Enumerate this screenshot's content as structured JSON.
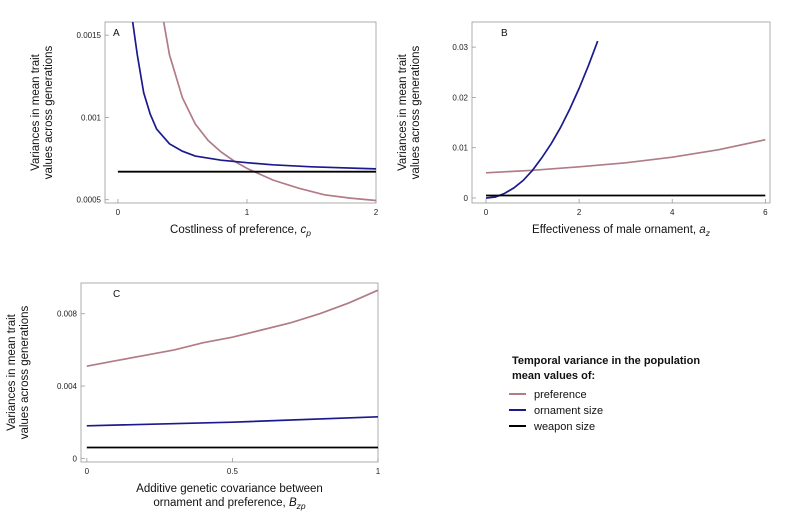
{
  "chart_data": [
    {
      "panel": "A",
      "type": "line",
      "xlabel": "Costliness of preference, c",
      "xlabel_sub": "p",
      "ylabel": [
        "Variances in mean trait",
        "values across generations"
      ],
      "xlim": [
        -0.1,
        2.0
      ],
      "ylim": [
        0.00048,
        0.00158
      ],
      "xticks": [
        0,
        1,
        2
      ],
      "xtick_labels": [
        "0",
        "1",
        "2"
      ],
      "yticks": [
        0.0005,
        0.001,
        0.0015
      ],
      "ytick_labels": [
        "0.0005",
        "0.001",
        "0.0015"
      ],
      "series": [
        {
          "name": "preference",
          "color": "#b07c86",
          "x": [
            0.355,
            0.4,
            0.5,
            0.6,
            0.7,
            0.8,
            0.9,
            1.0,
            1.2,
            1.4,
            1.6,
            1.8,
            2.0
          ],
          "y": [
            0.00158,
            0.00138,
            0.00112,
            0.00096,
            0.00086,
            0.00079,
            0.000735,
            0.00069,
            0.00062,
            0.00057,
            0.00053,
            0.00051,
            0.000495
          ]
        },
        {
          "name": "ornament size",
          "color": "#1a1a8e",
          "x": [
            0.115,
            0.15,
            0.2,
            0.25,
            0.3,
            0.4,
            0.5,
            0.6,
            0.8,
            1.0,
            1.2,
            1.5,
            2.0
          ],
          "y": [
            0.00158,
            0.00138,
            0.00115,
            0.00102,
            0.00093,
            0.00084,
            0.000795,
            0.000765,
            0.00074,
            0.000725,
            0.000712,
            0.0007,
            0.000687
          ]
        },
        {
          "name": "weapon size",
          "color": "#000000",
          "x": [
            0.0,
            2.0
          ],
          "y": [
            0.00067,
            0.00067
          ]
        }
      ]
    },
    {
      "panel": "B",
      "type": "line",
      "xlabel": "Effectiveness of male ornament, a",
      "xlabel_sub": "z",
      "ylabel": [
        "Variances in mean trait",
        "values across generations"
      ],
      "xlim": [
        -0.3,
        6.1
      ],
      "ylim": [
        -0.001,
        0.035
      ],
      "xticks": [
        0,
        2,
        4,
        6
      ],
      "xtick_labels": [
        "0",
        "2",
        "4",
        "6"
      ],
      "yticks": [
        0,
        0.01,
        0.02,
        0.03
      ],
      "ytick_labels": [
        "0",
        "0.01",
        "0.02",
        "0.03"
      ],
      "series": [
        {
          "name": "preference",
          "color": "#b07c86",
          "x": [
            0,
            1,
            2,
            3,
            4,
            5,
            6
          ],
          "y": [
            0.005,
            0.0055,
            0.0062,
            0.007,
            0.0081,
            0.0096,
            0.0116
          ]
        },
        {
          "name": "ornament size",
          "color": "#1a1a8e",
          "x": [
            0.0,
            0.2,
            0.4,
            0.6,
            0.8,
            1.0,
            1.2,
            1.4,
            1.6,
            1.8,
            2.0,
            2.2,
            2.4
          ],
          "y": [
            0.0,
            0.0002,
            0.0009,
            0.002,
            0.0035,
            0.0055,
            0.008,
            0.0108,
            0.014,
            0.0177,
            0.0218,
            0.0263,
            0.0312
          ]
        },
        {
          "name": "weapon size",
          "color": "#000000",
          "x": [
            0.0,
            6.0
          ],
          "y": [
            0.0005,
            0.0005
          ]
        }
      ]
    },
    {
      "panel": "C",
      "type": "line",
      "xlabel": [
        "Additive genetic covariance between",
        "ornament and preference, B"
      ],
      "xlabel_sub": "zp",
      "ylabel": [
        "Variances in mean trait",
        "values across generations"
      ],
      "xlim": [
        -0.02,
        1.0
      ],
      "ylim": [
        -0.0002,
        0.0097
      ],
      "xticks": [
        0,
        0.5,
        1
      ],
      "xtick_labels": [
        "0",
        "0.5",
        "1"
      ],
      "yticks": [
        0,
        0.004,
        0.008
      ],
      "ytick_labels": [
        "0",
        "0.004",
        "0.008"
      ],
      "series": [
        {
          "name": "preference",
          "color": "#b07c86",
          "x": [
            0,
            0.1,
            0.2,
            0.3,
            0.4,
            0.5,
            0.6,
            0.7,
            0.8,
            0.9,
            1.0
          ],
          "y": [
            0.0051,
            0.0054,
            0.0057,
            0.006,
            0.0064,
            0.0067,
            0.0071,
            0.0075,
            0.008,
            0.0086,
            0.0093
          ]
        },
        {
          "name": "ornament size",
          "color": "#1a1a8e",
          "x": [
            0,
            0.5,
            1.0
          ],
          "y": [
            0.0018,
            0.002,
            0.0023
          ]
        },
        {
          "name": "weapon size",
          "color": "#000000",
          "x": [
            0,
            1.0
          ],
          "y": [
            0.0006,
            0.0006
          ]
        }
      ]
    }
  ],
  "legend": {
    "title_line1": "Temporal variance in the population",
    "title_line2": "mean values of:",
    "items": [
      {
        "label": "preference",
        "color": "#b07c86"
      },
      {
        "label": "ornament size",
        "color": "#1a1a8e"
      },
      {
        "label": "weapon size",
        "color": "#000000"
      }
    ]
  }
}
